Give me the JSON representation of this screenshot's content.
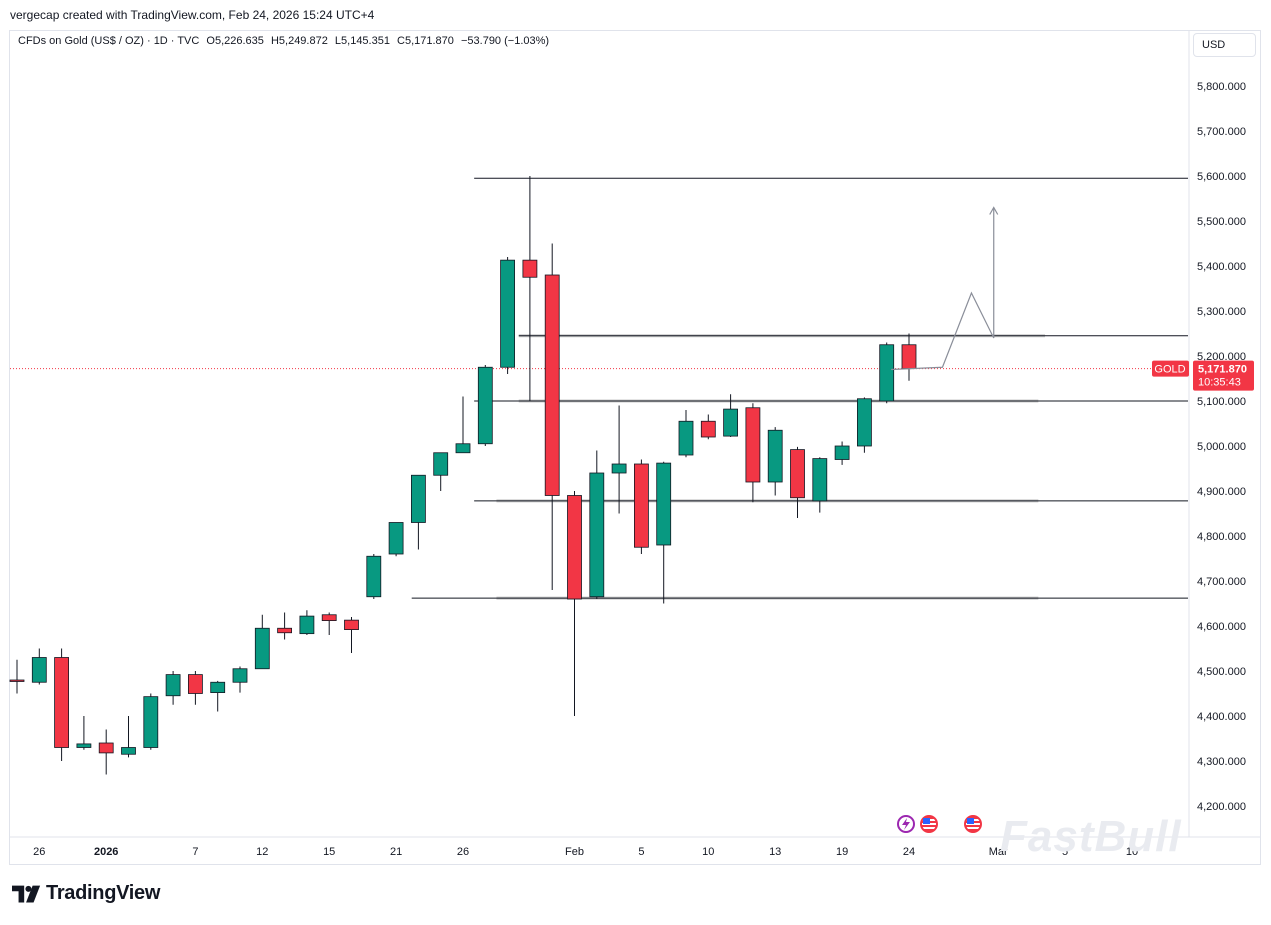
{
  "caption": "vergecap created with TradingView.com, Feb 24, 2026 15:24 UTC+4",
  "legend": {
    "symbol": "CFDs on Gold (US$ / OZ) · 1D · TVC",
    "open": "O5,226.635",
    "high": "H5,249.872",
    "low": "L5,145.351",
    "close": "C5,171.870",
    "change": "−53.790 (−1.03%)"
  },
  "currency": "USD",
  "price_tag": {
    "label": "GOLD",
    "price": "5,171.870",
    "countdown": "10:35:43"
  },
  "watermark": "FastBull",
  "brand": "TradingView",
  "colors": {
    "up": "#089981",
    "down": "#f23645",
    "line": "#131722",
    "zone": "#c8c8c8"
  },
  "icons": [
    "flash-event-icon",
    "us-flag-event-icon",
    "us-flag-event-icon"
  ],
  "chart_data": {
    "type": "candlestick",
    "ylim": [
      4150,
      5900
    ],
    "y_ticks": [
      "4,200.000",
      "4,300.000",
      "4,400.000",
      "4,500.000",
      "4,600.000",
      "4,700.000",
      "4,800.000",
      "4,900.000",
      "5,000.000",
      "5,100.000",
      "5,200.000",
      "5,300.000",
      "5,400.000",
      "5,500.000",
      "5,600.000",
      "5,700.000",
      "5,800.000"
    ],
    "x_ticks": [
      {
        "label": "26",
        "i": 1
      },
      {
        "label": "2026",
        "i": 4
      },
      {
        "label": "7",
        "i": 8
      },
      {
        "label": "12",
        "i": 11
      },
      {
        "label": "15",
        "i": 14
      },
      {
        "label": "21",
        "i": 17
      },
      {
        "label": "26",
        "i": 20
      },
      {
        "label": "Feb",
        "i": 25
      },
      {
        "label": "5",
        "i": 28
      },
      {
        "label": "10",
        "i": 31
      },
      {
        "label": "13",
        "i": 34
      },
      {
        "label": "19",
        "i": 37
      },
      {
        "label": "24",
        "i": 40
      },
      {
        "label": "Mar",
        "i": 44
      },
      {
        "label": "5",
        "i": 47
      },
      {
        "label": "10",
        "i": 50
      }
    ],
    "candles": [
      {
        "o": 4480,
        "h": 4525,
        "l": 4450,
        "c": 4478
      },
      {
        "o": 4475,
        "h": 4550,
        "l": 4470,
        "c": 4530
      },
      {
        "o": 4530,
        "h": 4550,
        "l": 4300,
        "c": 4330
      },
      {
        "o": 4330,
        "h": 4400,
        "l": 4325,
        "c": 4338
      },
      {
        "o": 4340,
        "h": 4370,
        "l": 4270,
        "c": 4318
      },
      {
        "o": 4315,
        "h": 4400,
        "l": 4308,
        "c": 4330
      },
      {
        "o": 4330,
        "h": 4450,
        "l": 4325,
        "c": 4443
      },
      {
        "o": 4445,
        "h": 4500,
        "l": 4425,
        "c": 4492
      },
      {
        "o": 4492,
        "h": 4500,
        "l": 4425,
        "c": 4450
      },
      {
        "o": 4452,
        "h": 4478,
        "l": 4410,
        "c": 4475
      },
      {
        "o": 4475,
        "h": 4510,
        "l": 4452,
        "c": 4505
      },
      {
        "o": 4505,
        "h": 4625,
        "l": 4505,
        "c": 4595
      },
      {
        "o": 4595,
        "h": 4630,
        "l": 4570,
        "c": 4585
      },
      {
        "o": 4583,
        "h": 4635,
        "l": 4580,
        "c": 4622
      },
      {
        "o": 4625,
        "h": 4630,
        "l": 4580,
        "c": 4612
      },
      {
        "o": 4613,
        "h": 4620,
        "l": 4540,
        "c": 4592
      },
      {
        "o": 4665,
        "h": 4760,
        "l": 4660,
        "c": 4755
      },
      {
        "o": 4760,
        "h": 4830,
        "l": 4755,
        "c": 4830
      },
      {
        "o": 4830,
        "h": 4930,
        "l": 4770,
        "c": 4935
      },
      {
        "o": 4935,
        "h": 4985,
        "l": 4900,
        "c": 4985
      },
      {
        "o": 4985,
        "h": 5110,
        "l": 4990,
        "c": 5005
      },
      {
        "o": 5005,
        "h": 5180,
        "l": 5000,
        "c": 5175
      },
      {
        "o": 5175,
        "h": 5420,
        "l": 5160,
        "c": 5413
      },
      {
        "o": 5413,
        "h": 5600,
        "l": 5100,
        "c": 5375
      },
      {
        "o": 5380,
        "h": 5450,
        "l": 4680,
        "c": 4890
      },
      {
        "o": 4890,
        "h": 4900,
        "l": 4400,
        "c": 4660
      },
      {
        "o": 4665,
        "h": 4990,
        "l": 4660,
        "c": 4940
      },
      {
        "o": 4940,
        "h": 5090,
        "l": 4850,
        "c": 4960
      },
      {
        "o": 4960,
        "h": 4970,
        "l": 4760,
        "c": 4775
      },
      {
        "o": 4780,
        "h": 4965,
        "l": 4650,
        "c": 4962
      },
      {
        "o": 4980,
        "h": 5080,
        "l": 4975,
        "c": 5055
      },
      {
        "o": 5055,
        "h": 5070,
        "l": 5015,
        "c": 5020
      },
      {
        "o": 5022,
        "h": 5115,
        "l": 5020,
        "c": 5082
      },
      {
        "o": 5085,
        "h": 5095,
        "l": 4875,
        "c": 4920
      },
      {
        "o": 4920,
        "h": 5042,
        "l": 4890,
        "c": 5035
      },
      {
        "o": 4992,
        "h": 4998,
        "l": 4840,
        "c": 4885
      },
      {
        "o": 4878,
        "h": 4975,
        "l": 4852,
        "c": 4972
      },
      {
        "o": 4970,
        "h": 5010,
        "l": 4958,
        "c": 5000
      },
      {
        "o": 5000,
        "h": 5108,
        "l": 4985,
        "c": 5105
      },
      {
        "o": 5100,
        "h": 5230,
        "l": 5095,
        "c": 5225
      },
      {
        "o": 5225,
        "h": 5250,
        "l": 5145,
        "c": 5172
      }
    ],
    "horizontal_lines": [
      {
        "price": 5595,
        "from_i": 20.5,
        "to_i": "edge"
      },
      {
        "price": 5245,
        "from_i": 22.5,
        "to_i": "edge"
      },
      {
        "price": 5100,
        "from_i": 20.5,
        "to_i": "edge"
      },
      {
        "price": 4878,
        "from_i": 20.5,
        "to_i": "edge"
      },
      {
        "price": 4662,
        "from_i": 17.7,
        "to_i": "edge"
      }
    ],
    "zones": [
      {
        "price": 5245,
        "from_i": 22.5,
        "to_i": 46.1
      },
      {
        "price": 5100,
        "from_i": 22.5,
        "to_i": 45.8
      },
      {
        "price": 4878,
        "from_i": 21.5,
        "to_i": 45.8
      },
      {
        "price": 4662,
        "from_i": 21.5,
        "to_i": 45.8
      }
    ],
    "projection": [
      {
        "i": 39.2,
        "p": 5170
      },
      {
        "i": 41.5,
        "p": 5175
      },
      {
        "i": 42.8,
        "p": 5340
      },
      {
        "i": 43.8,
        "p": 5240
      },
      {
        "i": 43.8,
        "p": 5530
      }
    ],
    "current_price": 5171.87
  }
}
